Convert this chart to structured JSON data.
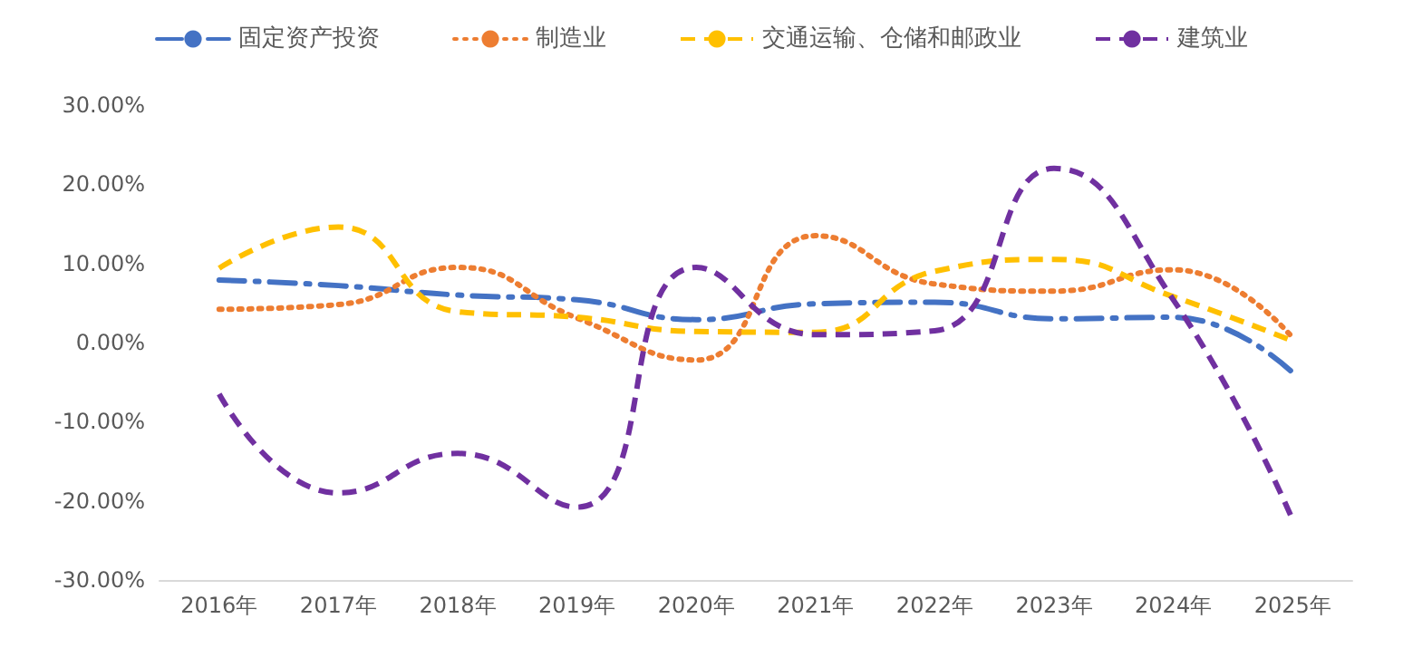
{
  "chart_data": {
    "type": "line",
    "categories": [
      "2016年",
      "2017年",
      "2018年",
      "2019年",
      "2020年",
      "2021年",
      "2022年",
      "2023年",
      "2024年",
      "2025年"
    ],
    "series": [
      {
        "name": "固定资产投资",
        "color": "#4472c4",
        "line_style": "dashdot",
        "values": [
          7.9,
          7.2,
          6.0,
          5.4,
          2.9,
          4.9,
          5.1,
          3.0,
          3.2,
          -3.8
        ]
      },
      {
        "name": "制造业",
        "color": "#ed7d31",
        "line_style": "dotted",
        "values": [
          4.2,
          4.8,
          9.5,
          3.1,
          -2.2,
          13.5,
          7.4,
          6.5,
          9.2,
          0.6
        ]
      },
      {
        "name": "交通运输、仓储和邮政业",
        "color": "#ffc000",
        "line_style": "dashed",
        "values": [
          9.4,
          14.6,
          3.9,
          3.2,
          1.4,
          1.3,
          9.0,
          10.5,
          5.8,
          0.2
        ]
      },
      {
        "name": "建筑业",
        "color": "#7030a0",
        "line_style": "dashed",
        "values": [
          -6.5,
          -19,
          -14,
          -20.8,
          9.5,
          1.0,
          1.5,
          22,
          5.4,
          -22.4
        ]
      }
    ],
    "ylim": [
      -30,
      30
    ],
    "yticks": [
      {
        "value": -30,
        "label": "-30.00%"
      },
      {
        "value": -20,
        "label": "-20.00%"
      },
      {
        "value": -10,
        "label": "-10.00%"
      },
      {
        "value": 0,
        "label": "0.00%"
      },
      {
        "value": 10,
        "label": "10.00%"
      },
      {
        "value": 20,
        "label": "20.00%"
      },
      {
        "value": 30,
        "label": "30.00%"
      }
    ],
    "grid": false,
    "legend": "top",
    "marker": "none"
  }
}
